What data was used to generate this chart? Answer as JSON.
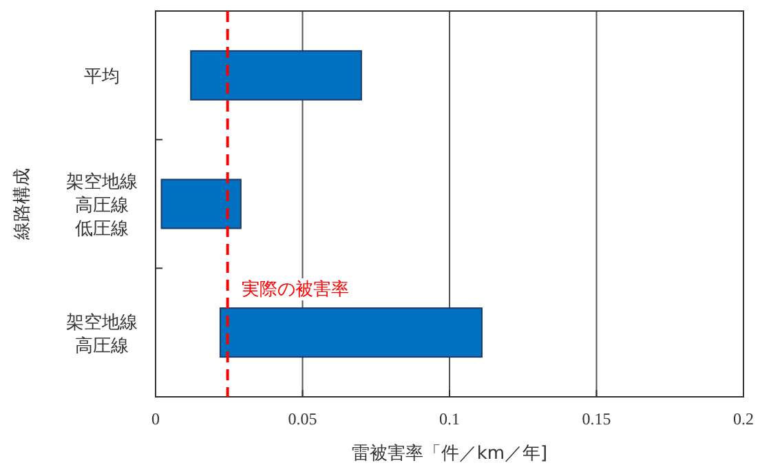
{
  "chart_data": {
    "type": "bar",
    "orientation": "horizontal",
    "xlabel": "雷被害率「件／km／年]",
    "ylabel": "線路構成",
    "categories": [
      "平均",
      "架空地線高圧線低圧線",
      "架空地線高圧線"
    ],
    "base": [
      0.012,
      0.002,
      0.022
    ],
    "values": [
      0.058,
      0.027,
      0.089
    ],
    "color": "#0070c0",
    "xlim": [
      0,
      0.2
    ],
    "xticks": [
      0,
      0.05,
      0.1,
      0.15,
      0.2
    ],
    "grid": "x",
    "ref_lines": [
      {
        "axis": "x",
        "value": 0.0245,
        "label": "実際の被害率",
        "color": "#ff0000",
        "line_style": "dashed"
      }
    ]
  }
}
